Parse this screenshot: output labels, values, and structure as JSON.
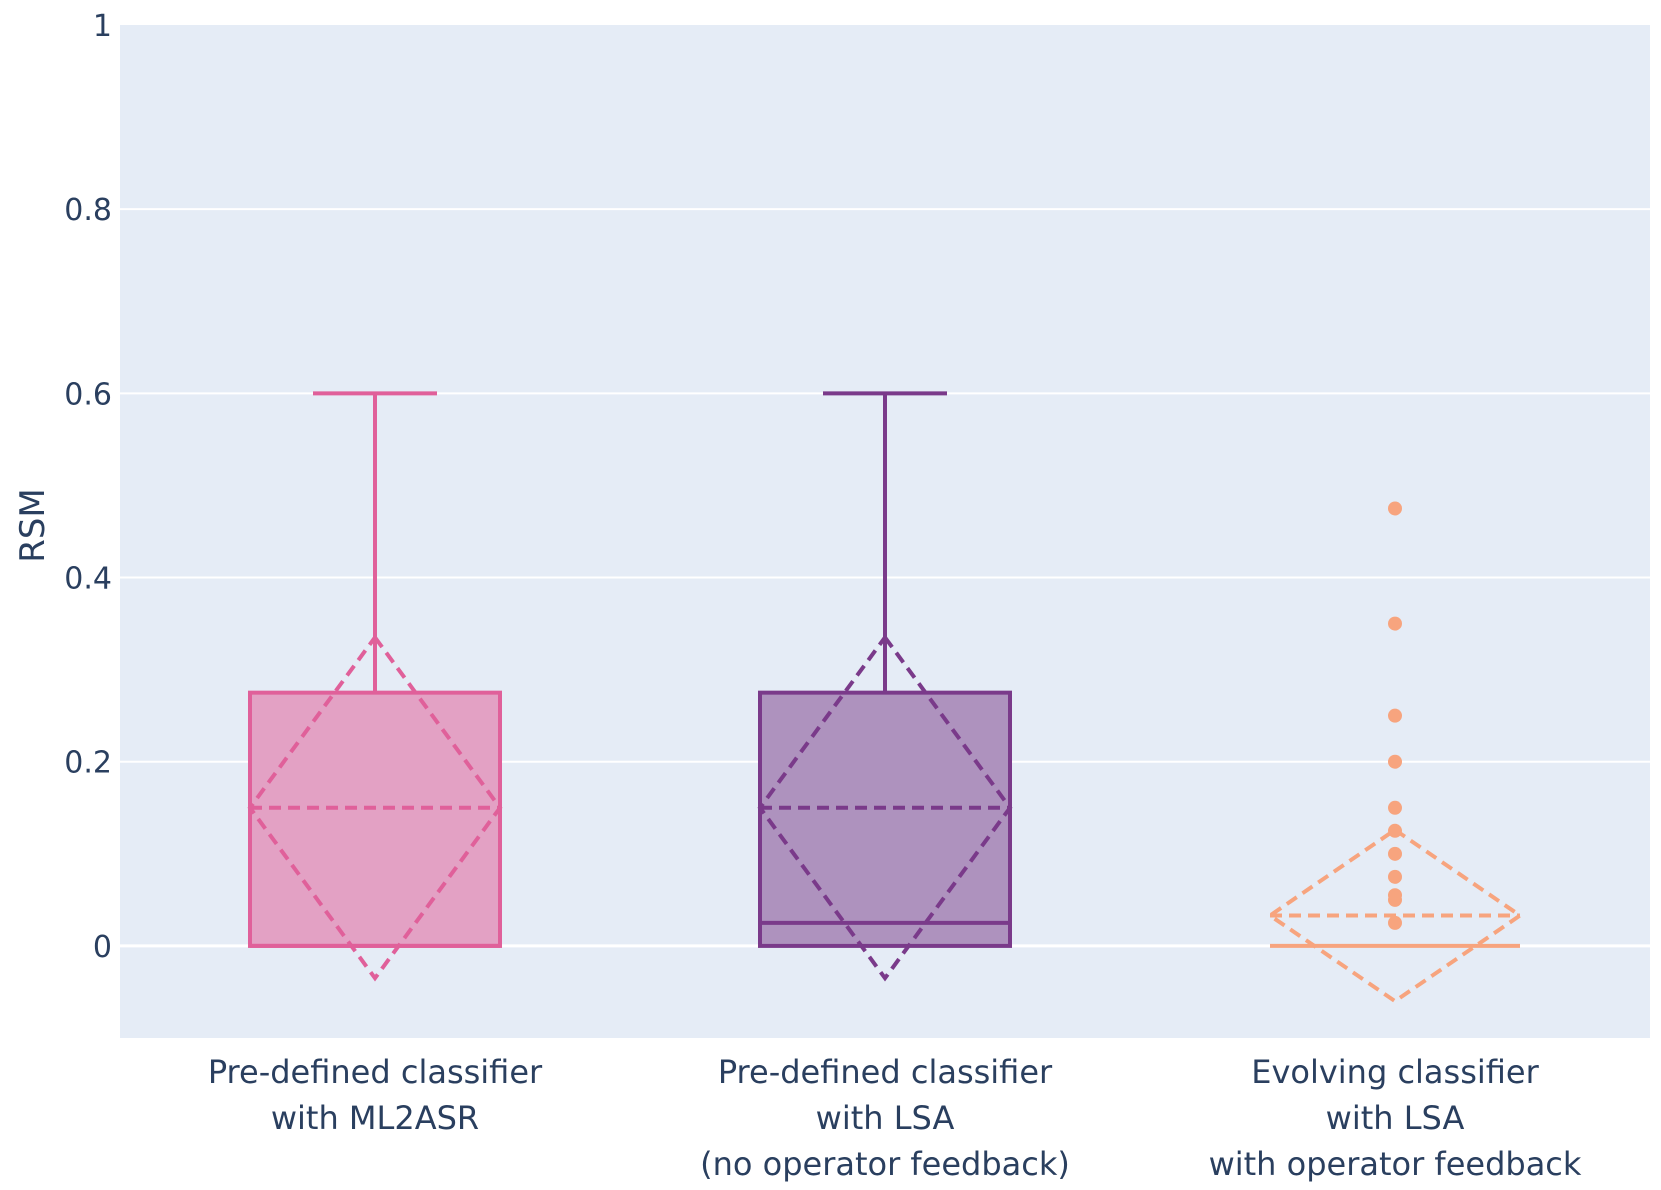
{
  "chart_data": {
    "type": "box",
    "ylabel": "RSM",
    "ylim": [
      -0.1,
      1.0
    ],
    "yticks": [
      0,
      0.2,
      0.4,
      0.6,
      0.8,
      1
    ],
    "ytick_labels": [
      "0",
      "0.2",
      "0.4",
      "0.6",
      "0.8",
      "1"
    ],
    "grid": true,
    "categories": [
      [
        "Pre-defined classifier",
        "with ML2ASR"
      ],
      [
        "Pre-defined classifier",
        "with LSA",
        "(no operator feedback)"
      ],
      [
        "Evolving classifier",
        "with LSA",
        "with operator feedback"
      ]
    ],
    "boxes": [
      {
        "color": "#e0609a",
        "fill": "#e3a1c4",
        "min": 0,
        "q1": 0,
        "median": 0,
        "q3": 0.275,
        "max": 0.6,
        "mean": 0.15,
        "sd": 0.185,
        "outliers": []
      },
      {
        "color": "#7a3a8a",
        "fill": "#ae92be",
        "min": 0,
        "q1": 0,
        "median": 0.025,
        "q3": 0.275,
        "max": 0.6,
        "mean": 0.15,
        "sd": 0.185,
        "outliers": []
      },
      {
        "color": "#f7a47e",
        "fill": "#f7a47e",
        "min": 0,
        "q1": 0,
        "median": 0,
        "q3": 0,
        "max": 0,
        "mean": 0.033,
        "sd": 0.093,
        "outliers": [
          0.475,
          0.35,
          0.25,
          0.2,
          0.15,
          0.125,
          0.1,
          0.075,
          0.055,
          0.05,
          0.025
        ]
      }
    ]
  }
}
